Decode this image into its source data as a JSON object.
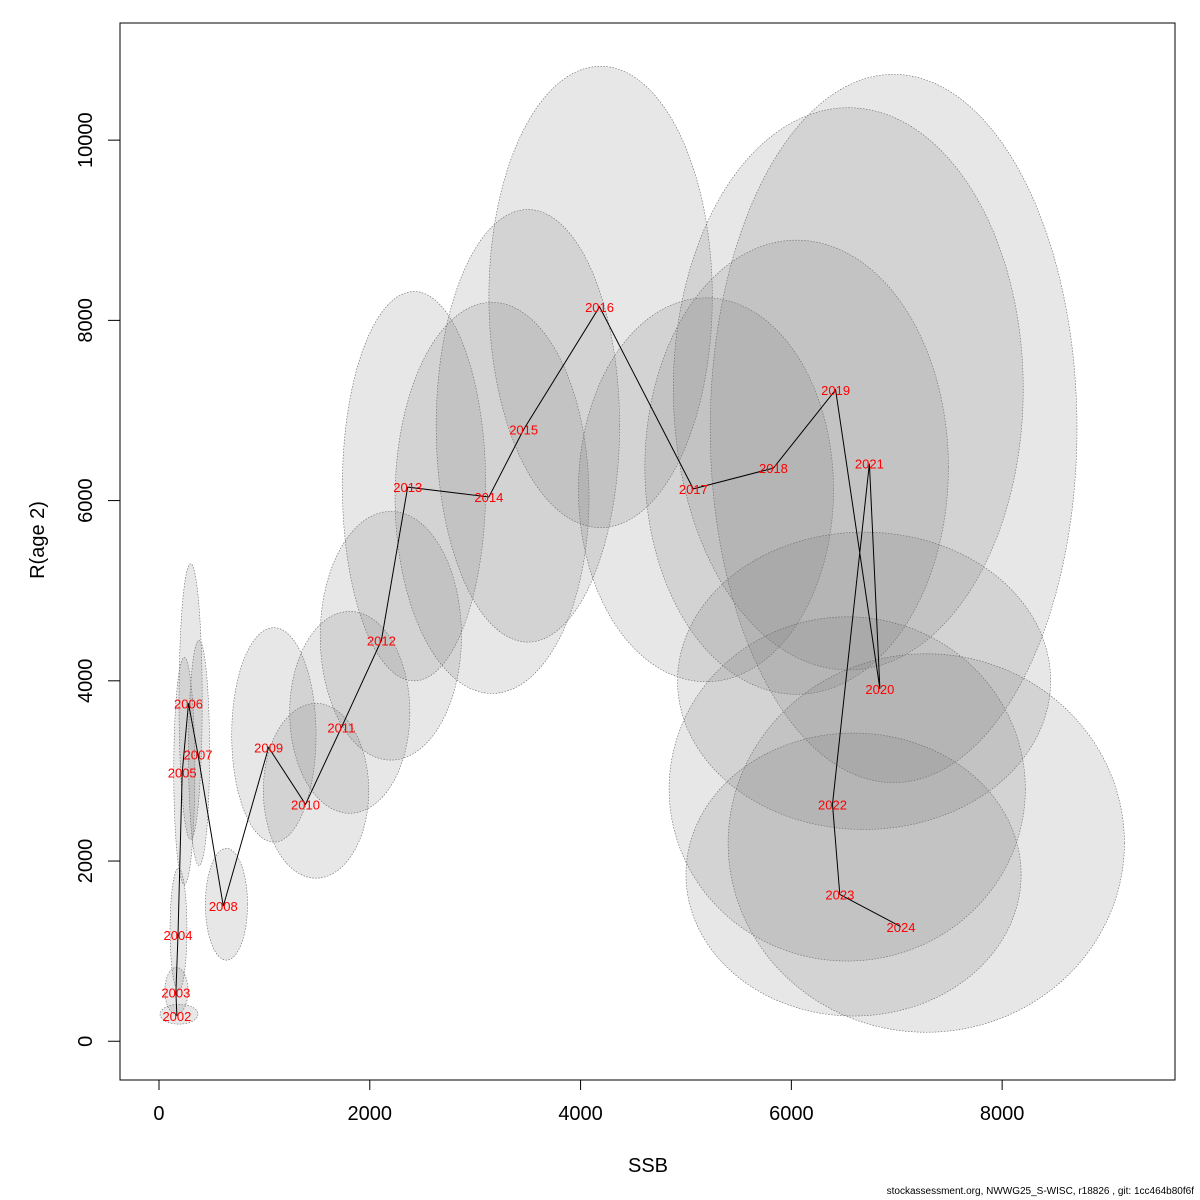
{
  "chart_data": {
    "type": "scatter",
    "title": "",
    "xlabel": "SSB",
    "ylabel": "R(age 2)",
    "xlim": [
      -370,
      9640
    ],
    "ylim": [
      -430,
      11300
    ],
    "xticks": [
      "0",
      "2000",
      "4000",
      "6000",
      "8000"
    ],
    "xtick_values": [
      0,
      2000,
      4000,
      6000,
      8000
    ],
    "yticks": [
      "0",
      "2000",
      "4000",
      "6000",
      "8000",
      "10000"
    ],
    "ytick_values": [
      0,
      2000,
      4000,
      6000,
      8000,
      10000
    ],
    "grid": false,
    "legend": "none",
    "points": [
      {
        "year": "2002",
        "ssb": 170,
        "r": 280
      },
      {
        "year": "2003",
        "ssb": 160,
        "r": 540
      },
      {
        "year": "2004",
        "ssb": 180,
        "r": 1180
      },
      {
        "year": "2005",
        "ssb": 220,
        "r": 2980
      },
      {
        "year": "2006",
        "ssb": 280,
        "r": 3750
      },
      {
        "year": "2007",
        "ssb": 370,
        "r": 3180
      },
      {
        "year": "2008",
        "ssb": 610,
        "r": 1500
      },
      {
        "year": "2009",
        "ssb": 1040,
        "r": 3260
      },
      {
        "year": "2010",
        "ssb": 1390,
        "r": 2630
      },
      {
        "year": "2011",
        "ssb": 1730,
        "r": 3480
      },
      {
        "year": "2012",
        "ssb": 2110,
        "r": 4450
      },
      {
        "year": "2013",
        "ssb": 2360,
        "r": 6150
      },
      {
        "year": "2014",
        "ssb": 3130,
        "r": 6040
      },
      {
        "year": "2015",
        "ssb": 3460,
        "r": 6790
      },
      {
        "year": "2016",
        "ssb": 4180,
        "r": 8150
      },
      {
        "year": "2017",
        "ssb": 5070,
        "r": 6130
      },
      {
        "year": "2018",
        "ssb": 5830,
        "r": 6360
      },
      {
        "year": "2019",
        "ssb": 6420,
        "r": 7230
      },
      {
        "year": "2020",
        "ssb": 6840,
        "r": 3910
      },
      {
        "year": "2021",
        "ssb": 6740,
        "r": 6410
      },
      {
        "year": "2022",
        "ssb": 6390,
        "r": 2630
      },
      {
        "year": "2023",
        "ssb": 6460,
        "r": 1630
      },
      {
        "year": "2024",
        "ssb": 7040,
        "r": 1270
      }
    ],
    "confidence_regions": [
      {
        "year": "2002",
        "cx": 190,
        "cy": 300,
        "rx": 180,
        "ry": 110
      },
      {
        "year": "2003",
        "cx": 165,
        "cy": 560,
        "rx": 110,
        "ry": 260
      },
      {
        "year": "2004",
        "cx": 185,
        "cy": 1240,
        "rx": 80,
        "ry": 680
      },
      {
        "year": "2005",
        "cx": 240,
        "cy": 3000,
        "rx": 100,
        "ry": 1260
      },
      {
        "year": "2006",
        "cx": 300,
        "cy": 3770,
        "rx": 110,
        "ry": 1530
      },
      {
        "year": "2007",
        "cx": 380,
        "cy": 3200,
        "rx": 100,
        "ry": 1250
      },
      {
        "year": "2008",
        "cx": 640,
        "cy": 1520,
        "rx": 200,
        "ry": 620
      },
      {
        "year": "2009",
        "cx": 1090,
        "cy": 3400,
        "rx": 400,
        "ry": 1190
      },
      {
        "year": "2010",
        "cx": 1490,
        "cy": 2780,
        "rx": 500,
        "ry": 970
      },
      {
        "year": "2011",
        "cx": 1810,
        "cy": 3650,
        "rx": 570,
        "ry": 1120
      },
      {
        "year": "2012",
        "cx": 2200,
        "cy": 4500,
        "rx": 670,
        "ry": 1380
      },
      {
        "year": "2013",
        "cx": 2420,
        "cy": 6160,
        "rx": 680,
        "ry": 2160
      },
      {
        "year": "2014",
        "cx": 3160,
        "cy": 6030,
        "rx": 920,
        "ry": 2170
      },
      {
        "year": "2015",
        "cx": 3500,
        "cy": 6830,
        "rx": 870,
        "ry": 2400
      },
      {
        "year": "2016",
        "cx": 4190,
        "cy": 8260,
        "rx": 1060,
        "ry": 2560
      },
      {
        "year": "2017",
        "cx": 5190,
        "cy": 6120,
        "rx": 1210,
        "ry": 2130
      },
      {
        "year": "2018",
        "cx": 6050,
        "cy": 6370,
        "rx": 1440,
        "ry": 2520
      },
      {
        "year": "2019",
        "cx": 6540,
        "cy": 7240,
        "rx": 1660,
        "ry": 3120
      },
      {
        "year": "2020",
        "cx": 6690,
        "cy": 4000,
        "rx": 1770,
        "ry": 1650
      },
      {
        "year": "2021",
        "cx": 6970,
        "cy": 6800,
        "rx": 1740,
        "ry": 3930
      },
      {
        "year": "2022",
        "cx": 6530,
        "cy": 2800,
        "rx": 1690,
        "ry": 1910
      },
      {
        "year": "2023",
        "cx": 6590,
        "cy": 1850,
        "rx": 1590,
        "ry": 1570
      },
      {
        "year": "2024",
        "cx": 7280,
        "cy": 2200,
        "rx": 1880,
        "ry": 2100
      }
    ]
  },
  "footer": "stockassessment.org, NWWG25_S-WISC, r18826 , git: 1cc464b80f6f"
}
